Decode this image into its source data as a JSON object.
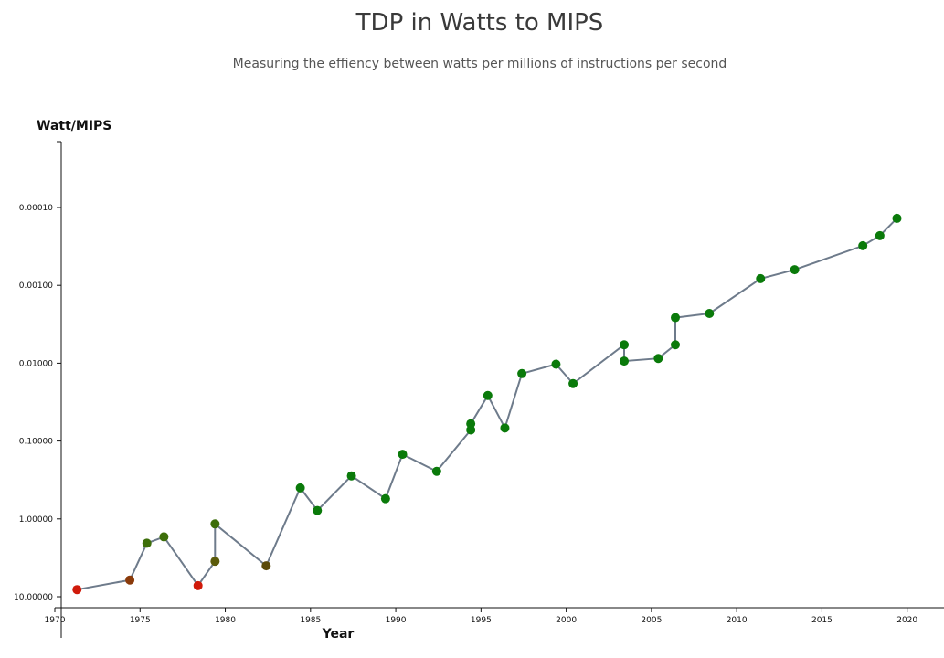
{
  "chart_data": {
    "type": "line",
    "title": "TDP in Watts to MIPS",
    "subtitle": "Measuring the effiency between watts per millions of instructions per second",
    "xlabel": "Year",
    "ylabel": "Watt/MIPS",
    "xlim": [
      1970,
      2022
    ],
    "ylim": [
      10.0,
      2e-05
    ],
    "yscale": "log-reversed",
    "x_ticks": [
      1970,
      1975,
      1980,
      1985,
      1990,
      1995,
      2000,
      2005,
      2010,
      2015,
      2020
    ],
    "x_tick_labels": [
      "1970",
      "1975",
      "1980",
      "1985",
      "1990",
      "1995",
      "2000",
      "2005",
      "2010",
      "2015",
      "2020"
    ],
    "y_ticks": [
      10.0,
      1.0,
      0.1,
      0.01,
      0.001,
      0.0001
    ],
    "y_tick_labels": [
      "10.00000",
      "1.00000",
      "0.10000",
      "0.01000",
      "0.00100",
      "0.00010"
    ],
    "series": [
      {
        "name": "Watt/MIPS",
        "color": "#6e7b8b",
        "points": [
          {
            "x": 1971.3,
            "y": 8.1,
            "color": "#d01a0a"
          },
          {
            "x": 1974.4,
            "y": 6.1,
            "color": "#8a3a0a"
          },
          {
            "x": 1975.4,
            "y": 2.05,
            "color": "#3d6e0a"
          },
          {
            "x": 1976.4,
            "y": 1.7,
            "color": "#3d6e0a"
          },
          {
            "x": 1978.4,
            "y": 7.2,
            "color": "#d01a0a"
          },
          {
            "x": 1979.4,
            "y": 3.5,
            "color": "#5a5a0a"
          },
          {
            "x": 1979.4,
            "y": 1.16,
            "color": "#3d6e0a"
          },
          {
            "x": 1982.4,
            "y": 4.0,
            "color": "#5a4a0a"
          },
          {
            "x": 1984.4,
            "y": 0.4,
            "color": "#0a7a0a"
          },
          {
            "x": 1985.4,
            "y": 0.78,
            "color": "#0a7a0a"
          },
          {
            "x": 1987.4,
            "y": 0.28,
            "color": "#0a7a0a"
          },
          {
            "x": 1989.4,
            "y": 0.55,
            "color": "#0a7a0a"
          },
          {
            "x": 1990.4,
            "y": 0.148,
            "color": "#0a7a0a"
          },
          {
            "x": 1992.4,
            "y": 0.245,
            "color": "#0a7a0a"
          },
          {
            "x": 1994.4,
            "y": 0.072,
            "color": "#0a7a0a"
          },
          {
            "x": 1994.4,
            "y": 0.06,
            "color": "#0a7a0a"
          },
          {
            "x": 1995.4,
            "y": 0.026,
            "color": "#0a7a0a"
          },
          {
            "x": 1996.4,
            "y": 0.068,
            "color": "#0a7a0a"
          },
          {
            "x": 1997.4,
            "y": 0.0136,
            "color": "#0a7a0a"
          },
          {
            "x": 1999.4,
            "y": 0.0103,
            "color": "#0a7a0a"
          },
          {
            "x": 2000.4,
            "y": 0.0183,
            "color": "#0a7a0a"
          },
          {
            "x": 2003.4,
            "y": 0.0058,
            "color": "#0a7a0a"
          },
          {
            "x": 2003.4,
            "y": 0.0094,
            "color": "#0a7a0a"
          },
          {
            "x": 2005.4,
            "y": 0.0087,
            "color": "#0a7a0a"
          },
          {
            "x": 2006.4,
            "y": 0.0058,
            "color": "#0a7a0a"
          },
          {
            "x": 2006.4,
            "y": 0.0026,
            "color": "#0a7a0a"
          },
          {
            "x": 2008.4,
            "y": 0.0023,
            "color": "#0a7a0a"
          },
          {
            "x": 2011.4,
            "y": 0.00082,
            "color": "#0a7a0a"
          },
          {
            "x": 2013.4,
            "y": 0.00063,
            "color": "#0a7a0a"
          },
          {
            "x": 2017.4,
            "y": 0.00031,
            "color": "#0a7a0a"
          },
          {
            "x": 2018.4,
            "y": 0.00023,
            "color": "#0a7a0a"
          },
          {
            "x": 2019.4,
            "y": 0.000138,
            "color": "#0a7a0a"
          }
        ]
      }
    ]
  }
}
